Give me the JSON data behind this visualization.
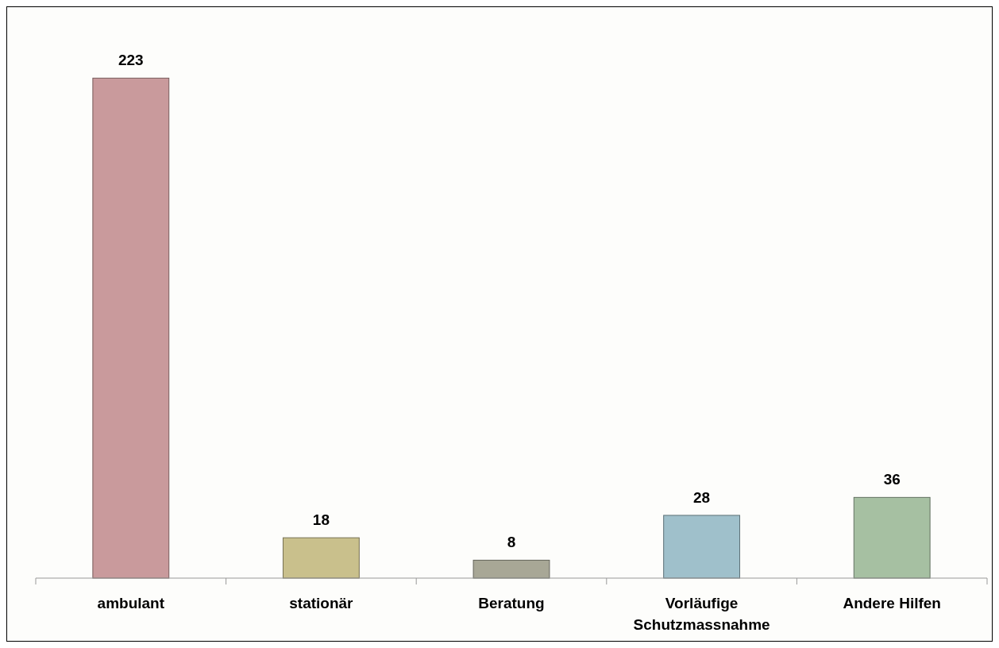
{
  "chart_data": {
    "type": "bar",
    "categories": [
      "ambulant",
      "stationär",
      "Beratung",
      "Vorläufige Schutzmassnahme",
      "Andere Hilfen"
    ],
    "values": [
      223,
      18,
      8,
      28,
      36
    ],
    "colors": [
      "#c99a9c",
      "#c9c08c",
      "#a8a796",
      "#9fc0cb",
      "#a6c0a2"
    ],
    "data_labels": true
  }
}
